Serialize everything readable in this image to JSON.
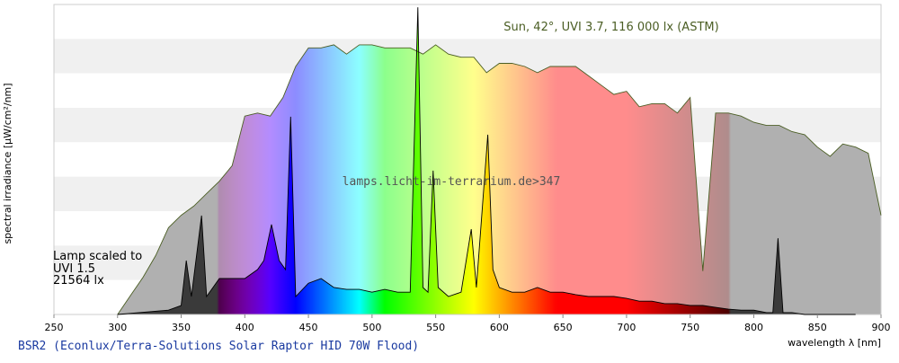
{
  "chart_data": {
    "type": "spectrum",
    "y_label": "spectral irradiance [µW/cm²/nm]",
    "x_label": "wavelength λ [nm]",
    "footer": "BSR2 (Econlux/Terra-Solutions Solar Raptor HID 70W Flood)",
    "watermark": "lamps.licht-im-terrarium.de>347",
    "annotation": [
      "Lamp scaled to",
      "UVI 1.5",
      "21564 lx"
    ],
    "xlim": [
      250,
      900
    ],
    "xticks": [
      250,
      300,
      350,
      400,
      450,
      500,
      550,
      600,
      650,
      700,
      750,
      800,
      850,
      900
    ],
    "ylim": [
      0,
      100
    ],
    "series": [
      {
        "name": "Sun, 42°, UVI 3.7, 116 000 lx (ASTM)",
        "color": "#4b5e24",
        "x": [
          300,
          310,
          320,
          330,
          340,
          350,
          360,
          370,
          380,
          390,
          400,
          410,
          420,
          430,
          440,
          450,
          460,
          470,
          480,
          490,
          500,
          510,
          520,
          530,
          540,
          550,
          560,
          570,
          580,
          590,
          600,
          610,
          620,
          630,
          640,
          650,
          660,
          670,
          680,
          690,
          700,
          710,
          720,
          730,
          740,
          750,
          760,
          770,
          780,
          790,
          800,
          810,
          820,
          830,
          840,
          850,
          860,
          870,
          880,
          890,
          900
        ],
        "values": [
          0,
          6,
          12,
          19,
          28,
          32,
          35,
          39,
          43,
          48,
          64,
          65,
          64,
          70,
          80,
          86,
          86,
          87,
          84,
          87,
          87,
          86,
          86,
          86,
          84,
          87,
          84,
          83,
          83,
          78,
          81,
          81,
          80,
          78,
          80,
          80,
          80,
          77,
          74,
          71,
          72,
          67,
          68,
          68,
          65,
          70,
          14,
          65,
          65,
          64,
          62,
          61,
          61,
          59,
          58,
          54,
          51,
          55,
          54,
          52,
          32
        ]
      },
      {
        "color": "#000000",
        "x": [
          300,
          340,
          350,
          354,
          358,
          366,
          370,
          380,
          390,
          400,
          410,
          415,
          421,
          427,
          432,
          436,
          440,
          450,
          460,
          470,
          480,
          490,
          500,
          510,
          520,
          530,
          536,
          540,
          544,
          548,
          552,
          560,
          570,
          578,
          582,
          591,
          595,
          600,
          610,
          620,
          630,
          640,
          650,
          660,
          670,
          680,
          690,
          700,
          710,
          720,
          730,
          740,
          750,
          760,
          770,
          780,
          790,
          800,
          810,
          815,
          819,
          823,
          830,
          840,
          880
        ],
        "values": [
          0,
          1.4,
          2.9,
          17.4,
          5.8,
          31.9,
          5.8,
          11.6,
          11.6,
          11.6,
          14.5,
          17.4,
          29,
          17.4,
          14.5,
          63.8,
          5.8,
          10.1,
          11.6,
          8.7,
          8.1,
          8.1,
          7.2,
          8.1,
          7.2,
          7.2,
          99.1,
          8.7,
          7.2,
          46.4,
          8.7,
          5.8,
          7.2,
          27.5,
          8.7,
          58,
          14.5,
          8.7,
          7.2,
          7.2,
          8.7,
          7.2,
          7.2,
          6.4,
          5.8,
          5.8,
          5.8,
          5.2,
          4.3,
          4.3,
          3.5,
          3.5,
          2.9,
          2.9,
          2.3,
          1.7,
          1.4,
          1.4,
          0.6,
          0.6,
          24.6,
          0.6,
          0.6,
          0,
          0
        ]
      }
    ]
  }
}
